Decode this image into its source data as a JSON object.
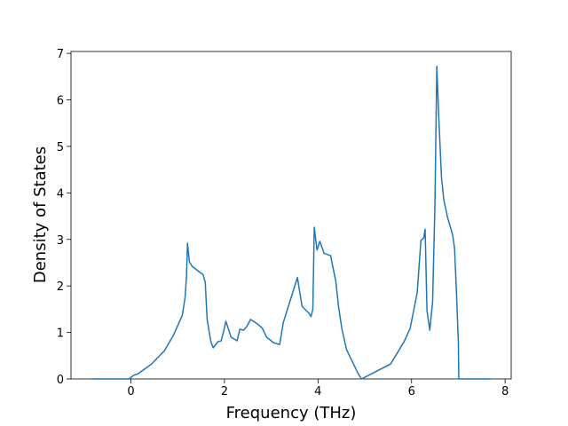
{
  "chart_data": {
    "type": "line",
    "x_label": "Frequency (THz)",
    "y_label": "Density of States",
    "series": [
      {
        "color": "#1f77b4",
        "x": [
          -0.85,
          -0.04,
          0.06,
          0.15,
          0.44,
          0.72,
          0.91,
          1.1,
          1.16,
          1.19,
          1.21,
          1.25,
          1.31,
          1.48,
          1.54,
          1.59,
          1.63,
          1.71,
          1.76,
          1.86,
          1.93,
          1.99,
          2.03,
          2.08,
          2.14,
          2.27,
          2.33,
          2.41,
          2.48,
          2.56,
          2.71,
          2.81,
          2.9,
          3.05,
          3.18,
          3.26,
          3.56,
          3.66,
          3.81,
          3.85,
          3.89,
          3.92,
          3.98,
          4.04,
          4.13,
          4.27,
          4.34,
          4.38,
          4.44,
          4.51,
          4.61,
          4.76,
          4.85,
          4.93,
          5.18,
          5.55,
          5.84,
          5.97,
          6.12,
          6.2,
          6.26,
          6.29,
          6.33,
          6.39,
          6.45,
          6.5,
          6.54,
          6.58,
          6.64,
          6.69,
          6.77,
          6.88,
          6.92,
          6.96,
          7.0,
          7.01,
          7.7
        ],
        "values": [
          0,
          0,
          0.08,
          0.11,
          0.32,
          0.61,
          0.94,
          1.37,
          1.76,
          2.23,
          2.92,
          2.52,
          2.42,
          2.29,
          2.25,
          2.08,
          1.28,
          0.8,
          0.67,
          0.8,
          0.82,
          1.05,
          1.24,
          1.09,
          0.9,
          0.82,
          1.07,
          1.05,
          1.13,
          1.28,
          1.18,
          1.09,
          0.9,
          0.78,
          0.74,
          1.22,
          2.18,
          1.56,
          1.41,
          1.34,
          1.5,
          3.26,
          2.77,
          2.96,
          2.7,
          2.65,
          2.3,
          2.1,
          1.55,
          1.08,
          0.63,
          0.32,
          0.13,
          0,
          0.13,
          0.32,
          0.8,
          1.09,
          1.85,
          2.98,
          3.03,
          3.22,
          1.47,
          1.05,
          1.66,
          3.76,
          6.72,
          5.67,
          4.33,
          3.85,
          3.47,
          3.09,
          2.8,
          1.85,
          0.8,
          0,
          0
        ]
      }
    ],
    "xlim": [
      -1.28,
      8.13
    ],
    "xticks": [
      0,
      2,
      4,
      6,
      8
    ],
    "ylim": [
      0,
      7.04
    ],
    "yticks": [
      0,
      1,
      2,
      3,
      4,
      5,
      6,
      7
    ]
  }
}
